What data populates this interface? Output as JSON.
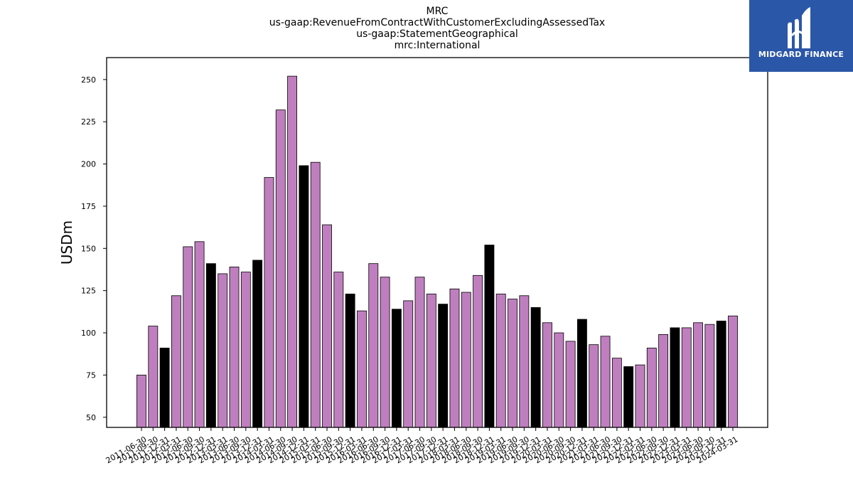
{
  "chart_data": {
    "type": "bar",
    "title_lines": [
      "MRC",
      "us-gaap:RevenueFromContractWithCustomerExcludingAssessedTax",
      "us-gaap:StatementGeographical",
      "mrc:International"
    ],
    "ylabel": "USDm",
    "xlabel": "",
    "ylim": [
      44,
      263
    ],
    "yticks": [
      50,
      75,
      100,
      125,
      150,
      175,
      200,
      225,
      250
    ],
    "grid": false,
    "colors": {
      "default": "#bf7fbf",
      "highlight": "#000000",
      "edge": "#000000"
    },
    "categories": [
      "2011-06-30",
      "2011-09-30",
      "2011-12-31",
      "2012-03-31",
      "2012-06-30",
      "2012-09-30",
      "2012-12-31",
      "2013-03-31",
      "2013-06-30",
      "2013-09-30",
      "2013-12-31",
      "2014-03-31",
      "2014-06-30",
      "2014-09-30",
      "2014-12-31",
      "2015-03-31",
      "2015-06-30",
      "2015-09-30",
      "2015-12-31",
      "2016-03-31",
      "2016-06-30",
      "2016-09-30",
      "2016-12-31",
      "2017-03-31",
      "2017-06-30",
      "2017-09-30",
      "2017-12-31",
      "2018-03-31",
      "2018-06-30",
      "2018-09-30",
      "2018-12-31",
      "2019-03-31",
      "2019-06-30",
      "2019-09-30",
      "2019-12-31",
      "2020-03-31",
      "2020-06-30",
      "2020-09-30",
      "2020-12-31",
      "2021-03-31",
      "2021-06-30",
      "2021-09-30",
      "2021-12-31",
      "2022-03-31",
      "2022-06-30",
      "2022-09-30",
      "2022-12-31",
      "2023-03-31",
      "2023-06-30",
      "2023-09-30",
      "2023-12-31",
      "2024-03-31"
    ],
    "values": [
      75,
      104,
      91,
      122,
      151,
      154,
      141,
      135,
      139,
      136,
      143,
      192,
      232,
      252,
      199,
      201,
      164,
      136,
      123,
      113,
      141,
      133,
      114,
      119,
      133,
      123,
      117,
      126,
      124,
      134,
      152,
      123,
      120,
      122,
      115,
      106,
      100,
      95,
      108,
      93,
      98,
      85,
      80,
      81,
      91,
      99,
      103,
      103,
      106,
      105,
      107,
      110
    ],
    "highlight_categories": [
      "2011-12-31",
      "2012-12-31",
      "2013-12-31",
      "2014-12-31",
      "2015-12-31",
      "2016-12-31",
      "2017-12-31",
      "2018-12-31",
      "2019-12-31",
      "2020-12-31",
      "2021-12-31",
      "2022-12-31",
      "2023-12-31"
    ]
  },
  "logo": {
    "text": "MIDGARD FINANCE",
    "background": "#2b57a8"
  }
}
